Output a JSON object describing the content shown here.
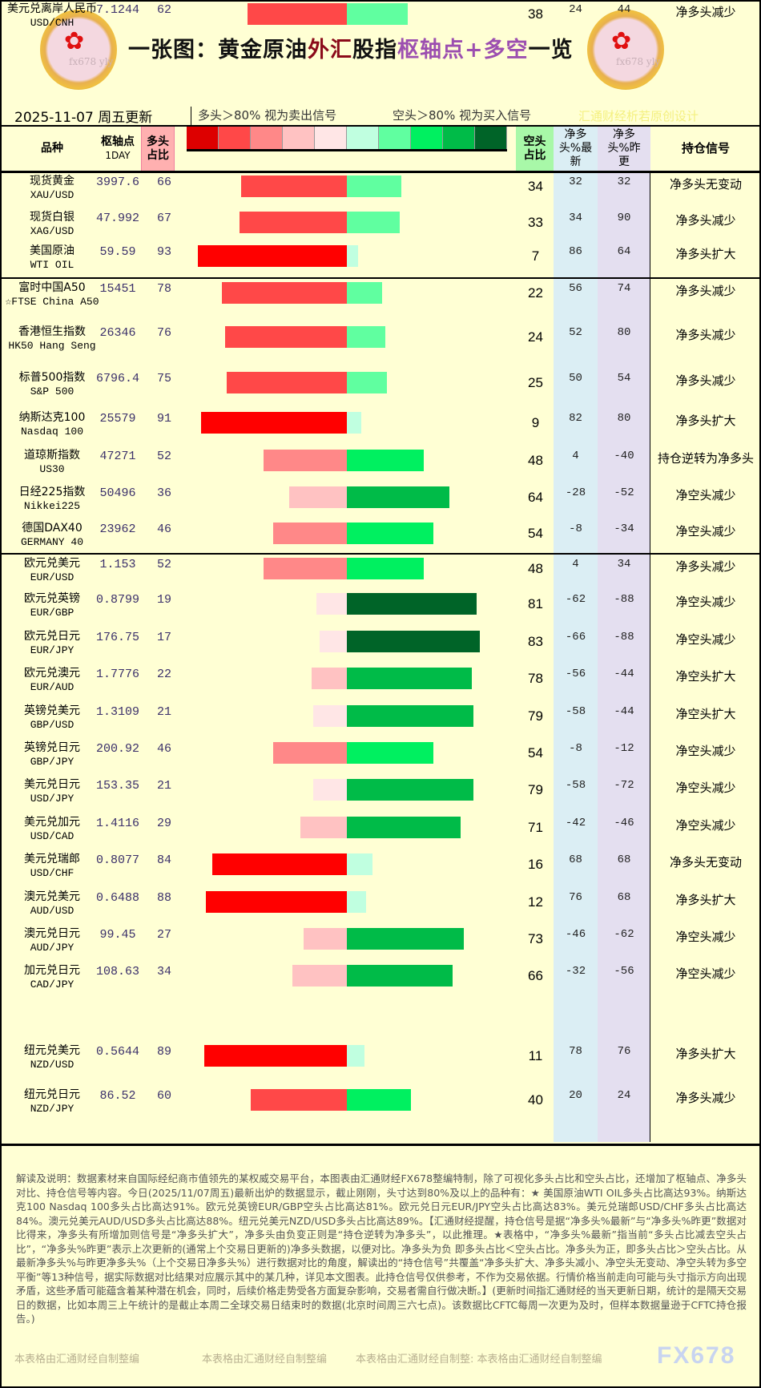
{
  "header": {
    "title_parts": [
      "一张图：黄金原油",
      "外汇",
      "股指",
      "枢轴点+多空",
      "一览"
    ],
    "logo_text": "fx678 yly"
  },
  "subheader": {
    "date": "2025-11-07 周五更新",
    "sell_note": "多头＞80% 视为卖出信号",
    "buy_note": "空头＞80% 视为买入信号",
    "design": "汇通财经析若原创设计"
  },
  "columns": {
    "name": "品种",
    "pivot": "枢轴点",
    "pivot_sub": "1DAY",
    "long": "多头占比",
    "short": "空头占比",
    "net_new": "净多头%最新",
    "net_prev": "净多头%昨更",
    "signal": "持仓信号"
  },
  "colors": {
    "long": [
      "#ff0000",
      "#ff4848",
      "#ff8888",
      "#ffc2c2",
      "#ffe6e6"
    ],
    "short": [
      "#c0ffe0",
      "#60ffa0",
      "#00f060",
      "#00bb48",
      "#006428"
    ],
    "palette": [
      "#dd0000",
      "#ff4848",
      "#ff8888",
      "#ffc2c2",
      "#ffe6e6",
      "#c0ffe0",
      "#60ffa0",
      "#00f060",
      "#00bb48",
      "#006428"
    ],
    "long_header": "#ffb0b0",
    "short_header": "#a8f8a8",
    "net_new_bg": "#dbeef4",
    "net_prev_bg": "#e4dff0"
  },
  "rows": [
    {
      "name": "现货黄金",
      "code": "XAU/USD",
      "pivot": "3997.6",
      "long": 66,
      "short": 34,
      "net_new": "32",
      "net_prev": "32",
      "signal": "净多头无变动"
    },
    {
      "name": "现货白银",
      "code": "XAG/USD",
      "pivot": "47.992",
      "long": 67,
      "short": 33,
      "net_new": "34",
      "net_prev": "90",
      "signal": "净多头减少"
    },
    {
      "name": "美国原油",
      "code": "WTI OIL",
      "pivot": "59.59",
      "long": 93,
      "short": 7,
      "net_new": "86",
      "net_prev": "64",
      "signal": "净多头扩大"
    },
    {
      "name": "富时中国A50",
      "code": "☆FTSE China A50",
      "pivot": "15451",
      "long": 78,
      "short": 22,
      "net_new": "56",
      "net_prev": "74",
      "signal": "净多头减少"
    },
    {
      "name": "香港恒生指数",
      "code": "HK50 Hang Seng",
      "pivot": "26346",
      "long": 76,
      "short": 24,
      "net_new": "52",
      "net_prev": "80",
      "signal": "净多头减少"
    },
    {
      "name": "标普500指数",
      "code": "S&P 500",
      "pivot": "6796.4",
      "long": 75,
      "short": 25,
      "net_new": "50",
      "net_prev": "54",
      "signal": "净多头减少"
    },
    {
      "name": "纳斯达克100",
      "code": "Nasdaq 100",
      "pivot": "25579",
      "long": 91,
      "short": 9,
      "net_new": "82",
      "net_prev": "80",
      "signal": "净多头扩大"
    },
    {
      "name": "道琼斯指数",
      "code": "US30",
      "pivot": "47271",
      "long": 52,
      "short": 48,
      "net_new": "4",
      "net_prev": "-40",
      "signal": "持仓逆转为净多头"
    },
    {
      "name": "日经225指数",
      "code": "Nikkei225",
      "pivot": "50496",
      "long": 36,
      "short": 64,
      "net_new": "-28",
      "net_prev": "-52",
      "signal": "净空头减少"
    },
    {
      "name": "德国DAX40",
      "code": "GERMANY 40",
      "pivot": "23962",
      "long": 46,
      "short": 54,
      "net_new": "-8",
      "net_prev": "-34",
      "signal": "净空头减少"
    },
    {
      "name": "欧元兑美元",
      "code": "EUR/USD",
      "pivot": "1.153",
      "long": 52,
      "short": 48,
      "net_new": "4",
      "net_prev": "34",
      "signal": "净多头减少"
    },
    {
      "name": "欧元兑英镑",
      "code": "EUR/GBP",
      "pivot": "0.8799",
      "long": 19,
      "short": 81,
      "net_new": "-62",
      "net_prev": "-88",
      "signal": "净空头减少"
    },
    {
      "name": "欧元兑日元",
      "code": "EUR/JPY",
      "pivot": "176.75",
      "long": 17,
      "short": 83,
      "net_new": "-66",
      "net_prev": "-88",
      "signal": "净空头减少"
    },
    {
      "name": "欧元兑澳元",
      "code": "EUR/AUD",
      "pivot": "1.7776",
      "long": 22,
      "short": 78,
      "net_new": "-56",
      "net_prev": "-44",
      "signal": "净空头扩大"
    },
    {
      "name": "英镑兑美元",
      "code": "GBP/USD",
      "pivot": "1.3109",
      "long": 21,
      "short": 79,
      "net_new": "-58",
      "net_prev": "-44",
      "signal": "净空头扩大"
    },
    {
      "name": "英镑兑日元",
      "code": "GBP/JPY",
      "pivot": "200.92",
      "long": 46,
      "short": 54,
      "net_new": "-8",
      "net_prev": "-12",
      "signal": "净空头减少"
    },
    {
      "name": "美元兑日元",
      "code": "USD/JPY",
      "pivot": "153.35",
      "long": 21,
      "short": 79,
      "net_new": "-58",
      "net_prev": "-72",
      "signal": "净空头减少"
    },
    {
      "name": "美元兑加元",
      "code": "USD/CAD",
      "pivot": "1.4116",
      "long": 29,
      "short": 71,
      "net_new": "-42",
      "net_prev": "-46",
      "signal": "净空头减少"
    },
    {
      "name": "美元兑瑞郎",
      "code": "USD/CHF",
      "pivot": "0.8077",
      "long": 84,
      "short": 16,
      "net_new": "68",
      "net_prev": "68",
      "signal": "净多头无变动"
    },
    {
      "name": "澳元兑美元",
      "code": "AUD/USD",
      "pivot": "0.6488",
      "long": 88,
      "short": 12,
      "net_new": "76",
      "net_prev": "68",
      "signal": "净多头扩大"
    },
    {
      "name": "澳元兑日元",
      "code": "AUD/JPY",
      "pivot": "99.45",
      "long": 27,
      "short": 73,
      "net_new": "-46",
      "net_prev": "-62",
      "signal": "净空头减少"
    },
    {
      "name": "加元兑日元",
      "code": "CAD/JPY",
      "pivot": "108.63",
      "long": 34,
      "short": 66,
      "net_new": "-32",
      "net_prev": "-56",
      "signal": "净空头减少"
    },
    {
      "name": "纽元兑美元",
      "code": "NZD/USD",
      "pivot": "0.5644",
      "long": 89,
      "short": 11,
      "net_new": "78",
      "net_prev": "76",
      "signal": "净多头扩大"
    },
    {
      "name": "纽元兑日元",
      "code": "NZD/JPY",
      "pivot": "86.52",
      "long": 60,
      "short": 40,
      "net_new": "20",
      "net_prev": "24",
      "signal": "净多头减少"
    },
    {
      "name": "美元兑离岸人民币",
      "code": "USD/CNH",
      "pivot": "7.1244",
      "long": 62,
      "short": 38,
      "net_new": "24",
      "net_prev": "44",
      "signal": "净多头减少"
    }
  ],
  "footer": {
    "text": "解读及说明：数据素材来自国际经纪商市值领先的某权威交易平台，本图表由汇通财经FX678整编特制，除了可视化多头占比和空头占比，还增加了枢轴点、净多头对比、持仓信号等内容。今日(2025/11/07周五)最新出炉的数据显示，截止刚刚，头寸达到80%及以上的品种有：★ 美国原油WTI OIL多头占比高达93%。纳斯达克100 Nasdaq 100多头占比高达91%。欧元兑英镑EUR/GBP空头占比高达81%。欧元兑日元EUR/JPY空头占比高达83%。美元兑瑞郎USD/CHF多头占比高达84%。澳元兑美元AUD/USD多头占比高达88%。纽元兑美元NZD/USD多头占比高达89%。【汇通财经提醒，持仓信号是据“净多头%最新”与“净多头%昨更”数据对比得来，净多头有所增加则信号是“净多头扩大”，净多头由负变正则是“持仓逆转为净多头”，以此推理。★表格中，“净多头%最新”指当前“多头占比减去空头占比”，“净多头%昨更”表示上次更新的(通常上个交易日更新的)净多头数据，以便对比。净多头为负 即多头占比＜空头占比。净多头为正，即多头占比＞空头占比。从最新净多头%与昨更净多头%（上个交易日净多头%）进行数据对比的角度，解读出的“持仓信号”共覆盖“净多头扩大、净多头减小、净空头无变动、净空头转为多空平衡”等13种信号，据实际数据对比结果对应展示其中的某几种，详见本文图表。此持仓信号仅供参考，不作为交易依据。行情价格当前走向可能与头寸指示方向出现矛盾，这些矛盾可能蕴含着某种潜在机会，同时，后续价格走势受各方面复杂影响，交易者需自行做决断。】(更新时间指汇通财经的当天更新日期，统计的是隔天交易日的数据，比如本周三上午统计的是截止本周二全球交易日结束时的数据(北京时间周三六七点)。该数据比CFTC每周一次更为及时，但样本数据量逊于CFTC持仓报告。)",
    "watermark1": "本表格由汇通财经自制整编",
    "watermark2": "本表格由汇通财经自制整编",
    "watermark3": "本表格由汇通财经自制整: 本表格由汇通财经自制整编",
    "brand": "FX678"
  }
}
